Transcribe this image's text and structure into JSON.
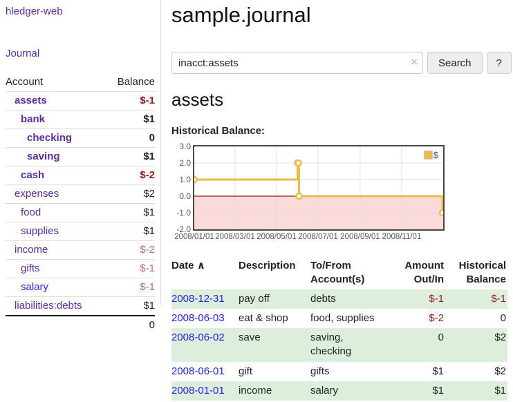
{
  "app": {
    "brand": "hledger-web",
    "nav_journal": "Journal"
  },
  "sidebar": {
    "columns": {
      "account": "Account",
      "balance": "Balance"
    },
    "accounts": [
      {
        "name": "assets",
        "depth": 1,
        "bold": true,
        "balance": "$-1",
        "tone": "neg",
        "link": "purple"
      },
      {
        "name": "bank",
        "depth": 2,
        "bold": true,
        "balance": "$1",
        "tone": "pos",
        "link": "purple"
      },
      {
        "name": "checking",
        "depth": 3,
        "bold": true,
        "balance": "0",
        "tone": "pos",
        "link": "purple"
      },
      {
        "name": "saving",
        "depth": 3,
        "bold": true,
        "balance": "$1",
        "tone": "pos",
        "link": "purple"
      },
      {
        "name": "cash",
        "depth": 2,
        "bold": true,
        "balance": "$-2",
        "tone": "neg",
        "link": "purple"
      },
      {
        "name": "expenses",
        "depth": 1,
        "bold": false,
        "balance": "$2",
        "tone": "pos",
        "link": "purple"
      },
      {
        "name": "food",
        "depth": 2,
        "bold": false,
        "balance": "$1",
        "tone": "pos",
        "link": "purple"
      },
      {
        "name": "supplies",
        "depth": 2,
        "bold": false,
        "balance": "$1",
        "tone": "pos",
        "link": "purple"
      },
      {
        "name": "income",
        "depth": 1,
        "bold": false,
        "balance": "$-2",
        "tone": "neg-soft",
        "link": "purple"
      },
      {
        "name": "gifts",
        "depth": 2,
        "bold": false,
        "balance": "$-1",
        "tone": "neg-soft",
        "link": "purple"
      },
      {
        "name": "salary",
        "depth": 2,
        "bold": false,
        "balance": "$-1",
        "tone": "neg-soft",
        "link": "blue"
      },
      {
        "name": "liabilities:debts",
        "depth": 1,
        "bold": false,
        "balance": "$1",
        "tone": "pos",
        "link": "purple"
      }
    ],
    "total": "0"
  },
  "header": {
    "title": "sample.journal"
  },
  "search": {
    "value": "inacct:assets",
    "clear_icon": "×",
    "search_label": "Search",
    "help_label": "?"
  },
  "account_page": {
    "heading": "assets",
    "chart_label": "Historical Balance:"
  },
  "chart_data": {
    "type": "line",
    "step": "after",
    "title": "Historical Balance",
    "legend_position": "top-right",
    "series": [
      {
        "name": "$",
        "points": [
          {
            "date": "2008-01-01",
            "value": 1
          },
          {
            "date": "2008-06-01",
            "value": 2
          },
          {
            "date": "2008-06-02",
            "value": 2
          },
          {
            "date": "2008-06-03",
            "value": 0
          },
          {
            "date": "2008-12-31",
            "value": -1
          }
        ]
      }
    ],
    "ylim": [
      -2,
      3
    ],
    "yticks": [
      "3.0",
      "2.0",
      "1.0",
      "0.0",
      "-1.0",
      "-2.0"
    ],
    "ytick_values": [
      3,
      2,
      1,
      0,
      -1,
      -2
    ],
    "xticks": [
      "2008/01/01",
      "2008/03/01",
      "2008/05/01",
      "2008/07/01",
      "2008/09/01",
      "2008/11/01"
    ],
    "x_range": [
      "2008-01-01",
      "2009-01-01"
    ],
    "grid": true,
    "colors": {
      "line": "#e9bd45",
      "marker_fill": "#ffffff",
      "zero_line": "#8b1a1a",
      "negative_fill": "#fbdada",
      "grid": "#e0e0e0",
      "frame": "#45474a"
    }
  },
  "register": {
    "columns": {
      "date": "Date",
      "sort_icon": "∧",
      "description": "Description",
      "accounts": "To/From Account(s)",
      "amount": "Amount Out/In",
      "balance": "Historical Balance"
    },
    "rows": [
      {
        "date": "2008-12-31",
        "description": "pay off",
        "accounts": "debts",
        "amount": "$-1",
        "amount_tone": "neg",
        "balance": "$-1",
        "balance_tone": "neg",
        "shade": true
      },
      {
        "date": "2008-06-03",
        "description": "eat & shop",
        "accounts": "food, supplies",
        "amount": "$-2",
        "amount_tone": "neg",
        "balance": "0",
        "balance_tone": "pos",
        "shade": false
      },
      {
        "date": "2008-06-02",
        "description": "save",
        "accounts": "saving, checking",
        "amount": "0",
        "amount_tone": "pos",
        "balance": "$2",
        "balance_tone": "pos",
        "shade": true
      },
      {
        "date": "2008-06-01",
        "description": "gift",
        "accounts": "gifts",
        "amount": "$1",
        "amount_tone": "pos",
        "balance": "$2",
        "balance_tone": "pos",
        "shade": false
      },
      {
        "date": "2008-01-01",
        "description": "income",
        "accounts": "salary",
        "amount": "$1",
        "amount_tone": "pos",
        "balance": "$1",
        "balance_tone": "pos",
        "shade": true
      }
    ]
  },
  "colors": {
    "link_purple": "#5b2d9e",
    "link_blue": "#2828d8",
    "negative": "#8f1d1d",
    "negative_soft": "#b96f73",
    "row_stripe_green": "#ddeedd",
    "chart_gold": "#e9bd45",
    "chart_pink": "#fbdada"
  }
}
